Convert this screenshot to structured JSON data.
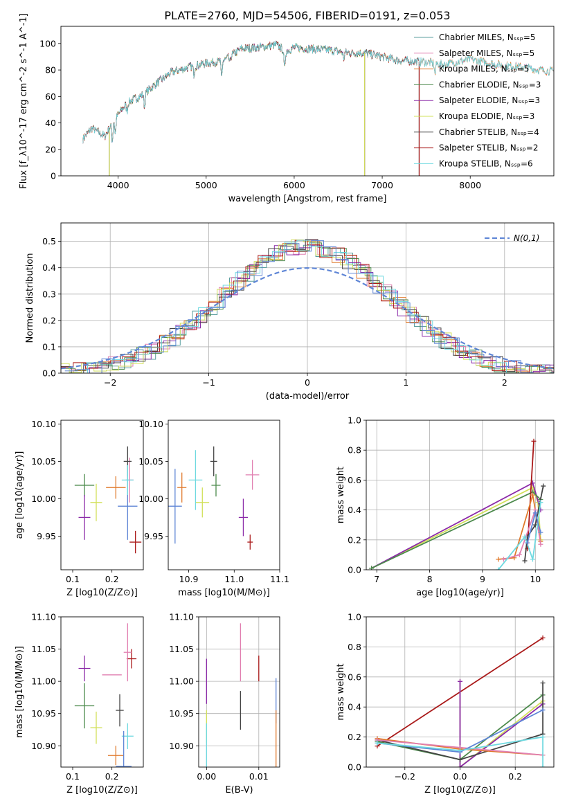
{
  "chart_data": [
    {
      "type": "line",
      "name": "spectrum",
      "title": "PLATE=2760, MJD=54506, FIBERID=0191, z=0.053",
      "xlabel": "wavelength [Angstrom, rest frame]",
      "ylabel": "Flux [f_λ10^-17 erg cm^-2 s^-1 A^-1]",
      "xlim": [
        3350,
        8950
      ],
      "ylim": [
        0,
        113
      ],
      "xticks": [
        4000,
        5000,
        6000,
        7000,
        8000
      ],
      "yticks": [
        0,
        20,
        40,
        60,
        80,
        100
      ],
      "series": [
        {
          "name": "Chabrier MILES, N_SSP=5",
          "color": "#5a9e9e",
          "coverage": [
            3600,
            8950
          ]
        },
        {
          "name": "Salpeter MILES, N_SSP=5",
          "color": "#e17fb0",
          "coverage": [
            3600,
            8950
          ]
        },
        {
          "name": "Kroupa MILES, N_SSP=5",
          "color": "#e07a2c",
          "coverage": [
            3600,
            8950
          ]
        },
        {
          "name": "Chabrier ELODIE, N_SSP=3",
          "color": "#4c8a4c",
          "coverage": [
            3900,
            6800
          ]
        },
        {
          "name": "Salpeter ELODIE, N_SSP=3",
          "color": "#8b2aa8",
          "coverage": [
            3900,
            6800
          ]
        },
        {
          "name": "Kroupa ELODIE, N_SSP=3",
          "color": "#d2e05a",
          "coverage": [
            3900,
            6800
          ]
        },
        {
          "name": "Chabrier STELIB, N_SSP=4",
          "color": "#444444",
          "coverage": [
            3600,
            7420
          ]
        },
        {
          "name": "Salpeter STELIB, N_SSP=2",
          "color": "#aa1a1a",
          "coverage": [
            3600,
            7420
          ]
        },
        {
          "name": "Kroupa STELIB, N_SSP=6",
          "color": "#6fd9e0",
          "coverage": [
            3600,
            8950
          ]
        }
      ],
      "continuum": [
        [
          3600,
          28
        ],
        [
          3700,
          36
        ],
        [
          3850,
          30
        ],
        [
          3950,
          42
        ],
        [
          4100,
          55
        ],
        [
          4300,
          62
        ],
        [
          4400,
          68
        ],
        [
          4600,
          78
        ],
        [
          4800,
          82
        ],
        [
          5000,
          85
        ],
        [
          5200,
          87
        ],
        [
          5400,
          96
        ],
        [
          5600,
          97
        ],
        [
          5800,
          99
        ],
        [
          5900,
          94
        ],
        [
          6000,
          97
        ],
        [
          6200,
          96
        ],
        [
          6400,
          95
        ],
        [
          6600,
          93
        ],
        [
          6800,
          93
        ],
        [
          7000,
          90
        ],
        [
          7200,
          87
        ],
        [
          7500,
          86
        ],
        [
          7700,
          84
        ],
        [
          8000,
          88
        ],
        [
          8300,
          84
        ],
        [
          8600,
          82
        ],
        [
          8900,
          79
        ]
      ]
    },
    {
      "type": "histogram",
      "name": "residual-distribution",
      "xlabel": "(data-model)/error",
      "ylabel": "Normed distribution",
      "xlim": [
        -2.5,
        2.5
      ],
      "ylim": [
        0,
        0.57
      ],
      "xticks": [
        -2,
        -1,
        0,
        1,
        2
      ],
      "yticks": [
        0.0,
        0.1,
        0.2,
        0.3,
        0.4,
        0.5
      ],
      "grid": true,
      "legend": "N(0,1)",
      "bin_width": 0.125,
      "reference_color": "#5f86d6"
    },
    {
      "type": "scatter",
      "name": "age-vs-Z",
      "xlabel": "Z [log10(Z/Z⊙)]",
      "ylabel": "age [log10(age/yr)]",
      "xlim": [
        0.07,
        0.28
      ],
      "ylim": [
        9.905,
        10.105
      ],
      "xticks": [
        0.1,
        0.2
      ],
      "yticks": [
        9.95,
        10.0,
        10.05,
        10.1
      ],
      "points": [
        {
          "x": 0.245,
          "y": 10.025,
          "dx": 0.02,
          "dy": 0.06,
          "color": "#e17fb0"
        },
        {
          "x": 0.24,
          "y": 10.05,
          "dx": 0.02,
          "dy": 0.04,
          "color": "#444444"
        },
        {
          "x": 0.21,
          "y": 10.015,
          "dx": 0.05,
          "dy": 0.03,
          "color": "#e07a2c"
        },
        {
          "x": 0.13,
          "y": 10.018,
          "dx": 0.05,
          "dy": 0.03,
          "color": "#4c8a4c"
        },
        {
          "x": 0.13,
          "y": 9.975,
          "dx": 0.03,
          "dy": 0.06,
          "color": "#8b2aa8"
        },
        {
          "x": 0.16,
          "y": 9.995,
          "dx": 0.03,
          "dy": 0.05,
          "color": "#d2e05a"
        },
        {
          "x": 0.26,
          "y": 9.942,
          "dx": 0.03,
          "dy": 0.03,
          "color": "#aa1a1a"
        },
        {
          "x": 0.24,
          "y": 9.99,
          "dx": 0.05,
          "dy": 0.09,
          "color": "#5f86d6"
        },
        {
          "x": 0.24,
          "y": 10.025,
          "dx": 0.03,
          "dy": 0.04,
          "color": "#6fd9e0"
        }
      ]
    },
    {
      "type": "scatter",
      "name": "age-vs-mass",
      "xlabel": "mass [log10(M/M⊙)]",
      "ylabel": "",
      "xlim": [
        10.855,
        11.1
      ],
      "ylim": [
        9.905,
        10.105
      ],
      "xticks": [
        10.9,
        11.0,
        11.1
      ],
      "yticks": [
        9.95,
        10.0,
        10.05,
        10.1
      ],
      "points": [
        {
          "x": 11.04,
          "y": 10.032,
          "dx": 0.03,
          "dy": 0.04,
          "color": "#e17fb0"
        },
        {
          "x": 10.955,
          "y": 10.05,
          "dx": 0.015,
          "dy": 0.04,
          "color": "#444444"
        },
        {
          "x": 10.885,
          "y": 10.015,
          "dx": 0.02,
          "dy": 0.04,
          "color": "#e07a2c"
        },
        {
          "x": 10.96,
          "y": 10.018,
          "dx": 0.02,
          "dy": 0.03,
          "color": "#4c8a4c"
        },
        {
          "x": 11.02,
          "y": 9.975,
          "dx": 0.02,
          "dy": 0.05,
          "color": "#8b2aa8"
        },
        {
          "x": 10.93,
          "y": 9.995,
          "dx": 0.03,
          "dy": 0.04,
          "color": "#d2e05a"
        },
        {
          "x": 11.035,
          "y": 9.942,
          "dx": 0.012,
          "dy": 0.02,
          "color": "#aa1a1a"
        },
        {
          "x": 10.87,
          "y": 9.99,
          "dx": 0.03,
          "dy": 0.1,
          "color": "#5f86d6"
        },
        {
          "x": 10.915,
          "y": 10.025,
          "dx": 0.03,
          "dy": 0.08,
          "color": "#6fd9e0"
        }
      ]
    },
    {
      "type": "line",
      "name": "mass-weight-vs-age",
      "xlabel": "age  [log10(age/yr)]",
      "ylabel": "mass weight",
      "xlim": [
        6.8,
        10.35
      ],
      "ylim": [
        0,
        1.0
      ],
      "xticks": [
        7,
        8,
        9,
        10
      ],
      "yticks": [
        0.0,
        0.2,
        0.4,
        0.6,
        0.8,
        1.0
      ],
      "grid": true,
      "series": [
        {
          "color": "#d2e05a",
          "points": [
            [
              6.9,
              0.01
            ],
            [
              9.95,
              0.55
            ],
            [
              10.05,
              0.45
            ],
            [
              10.1,
              0.2
            ]
          ]
        },
        {
          "color": "#8b2aa8",
          "points": [
            [
              6.9,
              0.01
            ],
            [
              9.95,
              0.58
            ],
            [
              10.1,
              0.4
            ]
          ]
        },
        {
          "color": "#4c8a4c",
          "points": [
            [
              6.9,
              0.01
            ],
            [
              9.95,
              0.52
            ],
            [
              10.1,
              0.47
            ]
          ]
        },
        {
          "color": "#aa1a1a",
          "points": [
            [
              9.85,
              0.14
            ],
            [
              9.97,
              0.86
            ]
          ]
        },
        {
          "color": "#e07a2c",
          "points": [
            [
              9.3,
              0.07
            ],
            [
              9.6,
              0.08
            ],
            [
              9.95,
              0.5
            ],
            [
              10.1,
              0.19
            ]
          ]
        },
        {
          "color": "#e17fb0",
          "points": [
            [
              9.4,
              0.07
            ],
            [
              9.7,
              0.1
            ],
            [
              10.0,
              0.4
            ],
            [
              10.1,
              0.17
            ]
          ]
        },
        {
          "color": "#444444",
          "points": [
            [
              9.8,
              0.06
            ],
            [
              9.85,
              0.22
            ],
            [
              10.0,
              0.3
            ],
            [
              10.15,
              0.56
            ]
          ]
        },
        {
          "color": "#6fd9e0",
          "points": [
            [
              9.3,
              0.0
            ],
            [
              9.8,
              0.22
            ],
            [
              9.95,
              0.07
            ],
            [
              10.1,
              0.45
            ]
          ]
        },
        {
          "color": "#5f86d6",
          "points": [
            [
              9.85,
              0.18
            ],
            [
              10.0,
              0.38
            ],
            [
              10.1,
              0.25
            ]
          ]
        }
      ]
    },
    {
      "type": "scatter",
      "name": "mass-vs-Z",
      "xlabel": "Z [log10(Z/Z⊙)]",
      "ylabel": "mass [log10(M/M⊙)]",
      "xlim": [
        0.07,
        0.28
      ],
      "ylim": [
        10.867,
        11.1
      ],
      "xticks": [
        0.1,
        0.2
      ],
      "yticks": [
        10.9,
        10.95,
        11.0,
        11.05,
        11.1
      ],
      "points": [
        {
          "x": 0.25,
          "y": 11.035,
          "dx": 0.025,
          "dy": 0.03,
          "color": "#aa1a1a"
        },
        {
          "x": 0.24,
          "y": 11.045,
          "dx": 0.02,
          "dy": 0.09,
          "color": "#e17fb0"
        },
        {
          "x": 0.13,
          "y": 11.02,
          "dx": 0.03,
          "dy": 0.04,
          "color": "#8b2aa8"
        },
        {
          "x": 0.2,
          "y": 11.01,
          "dx": 0.05,
          "dy": 0.0,
          "color": "#e17fb0"
        },
        {
          "x": 0.13,
          "y": 10.962,
          "dx": 0.05,
          "dy": 0.07,
          "color": "#4c8a4c"
        },
        {
          "x": 0.22,
          "y": 10.955,
          "dx": 0.02,
          "dy": 0.05,
          "color": "#444444"
        },
        {
          "x": 0.16,
          "y": 10.928,
          "dx": 0.03,
          "dy": 0.05,
          "color": "#d2e05a"
        },
        {
          "x": 0.24,
          "y": 10.915,
          "dx": 0.03,
          "dy": 0.04,
          "color": "#6fd9e0"
        },
        {
          "x": 0.21,
          "y": 10.885,
          "dx": 0.04,
          "dy": 0.03,
          "color": "#e07a2c"
        },
        {
          "x": 0.23,
          "y": 10.868,
          "dx": 0.04,
          "dy": 0.11,
          "color": "#5f86d6"
        }
      ]
    },
    {
      "type": "scatter",
      "name": "mass-vs-ebv",
      "xlabel": "E(B-V)",
      "ylabel": "",
      "xlim": [
        -0.0015,
        0.014
      ],
      "ylim": [
        10.867,
        11.1
      ],
      "xticks": [
        0.0,
        0.01
      ],
      "yticks": [
        10.9,
        10.95,
        11.0,
        11.05,
        11.1
      ],
      "grid": true,
      "points": [
        {
          "x": 0.0,
          "y": 11.0,
          "dx": 0.0,
          "dy": 0.07,
          "color": "#8b2aa8"
        },
        {
          "x": 0.0,
          "y": 10.93,
          "dx": 0.0,
          "dy": 0.05,
          "color": "#d2e05a"
        },
        {
          "x": 0.0,
          "y": 10.87,
          "dx": 0.0,
          "dy": 0.13,
          "color": "#6fd9e0"
        },
        {
          "x": 0.0065,
          "y": 11.045,
          "dx": 0.0,
          "dy": 0.09,
          "color": "#e17fb0"
        },
        {
          "x": 0.0065,
          "y": 10.955,
          "dx": 0.0,
          "dy": 0.06,
          "color": "#444444"
        },
        {
          "x": 0.01,
          "y": 11.02,
          "dx": 0.0,
          "dy": 0.04,
          "color": "#aa1a1a"
        },
        {
          "x": 0.0133,
          "y": 10.97,
          "dx": 0.0,
          "dy": 0.07,
          "color": "#5f86d6"
        },
        {
          "x": 0.0133,
          "y": 10.91,
          "dx": 0.0,
          "dy": 0.09,
          "color": "#e07a2c"
        }
      ]
    },
    {
      "type": "line",
      "name": "mass-weight-vs-Z",
      "xlabel": "Z [log10(Z/Z⊙)]",
      "ylabel": "mass weight",
      "xlim": [
        -0.34,
        0.34
      ],
      "ylim": [
        0,
        1.0
      ],
      "xticks": [
        -0.2,
        0.0,
        0.2
      ],
      "yticks": [
        0.0,
        0.2,
        0.4,
        0.6,
        0.8,
        1.0
      ],
      "grid": true,
      "series": [
        {
          "color": "#aa1a1a",
          "points": [
            [
              -0.3,
              0.14
            ],
            [
              0.3,
              0.86
            ]
          ]
        },
        {
          "color": "#d2e05a",
          "points": [
            [
              0.0,
              0.57
            ],
            [
              0.0,
              0.0
            ],
            [
              0.3,
              0.44
            ]
          ]
        },
        {
          "color": "#8b2aa8",
          "points": [
            [
              0.0,
              0.57
            ],
            [
              0.0,
              0.0
            ],
            [
              0.3,
              0.42
            ]
          ]
        },
        {
          "color": "#4c8a4c",
          "points": [
            [
              -0.3,
              0.17
            ],
            [
              0.0,
              0.05
            ],
            [
              0.3,
              0.48
            ]
          ]
        },
        {
          "color": "#444444",
          "points": [
            [
              -0.3,
              0.18
            ],
            [
              0.0,
              0.05
            ],
            [
              0.3,
              0.22
            ],
            [
              0.3,
              0.56
            ]
          ]
        },
        {
          "color": "#e07a2c",
          "points": [
            [
              -0.3,
              0.19
            ],
            [
              0.0,
              0.12
            ],
            [
              0.3,
              0.08
            ]
          ]
        },
        {
          "color": "#e17fb0",
          "points": [
            [
              -0.3,
              0.18
            ],
            [
              0.0,
              0.13
            ],
            [
              0.3,
              0.08
            ]
          ]
        },
        {
          "color": "#5f86d6",
          "points": [
            [
              -0.3,
              0.16
            ],
            [
              0.0,
              0.1
            ],
            [
              0.3,
              0.38
            ]
          ]
        },
        {
          "color": "#6fd9e0",
          "points": [
            [
              -0.3,
              0.16
            ],
            [
              0.0,
              0.11
            ],
            [
              0.3,
              0.2
            ],
            [
              0.3,
              0.0
            ]
          ]
        }
      ]
    }
  ]
}
